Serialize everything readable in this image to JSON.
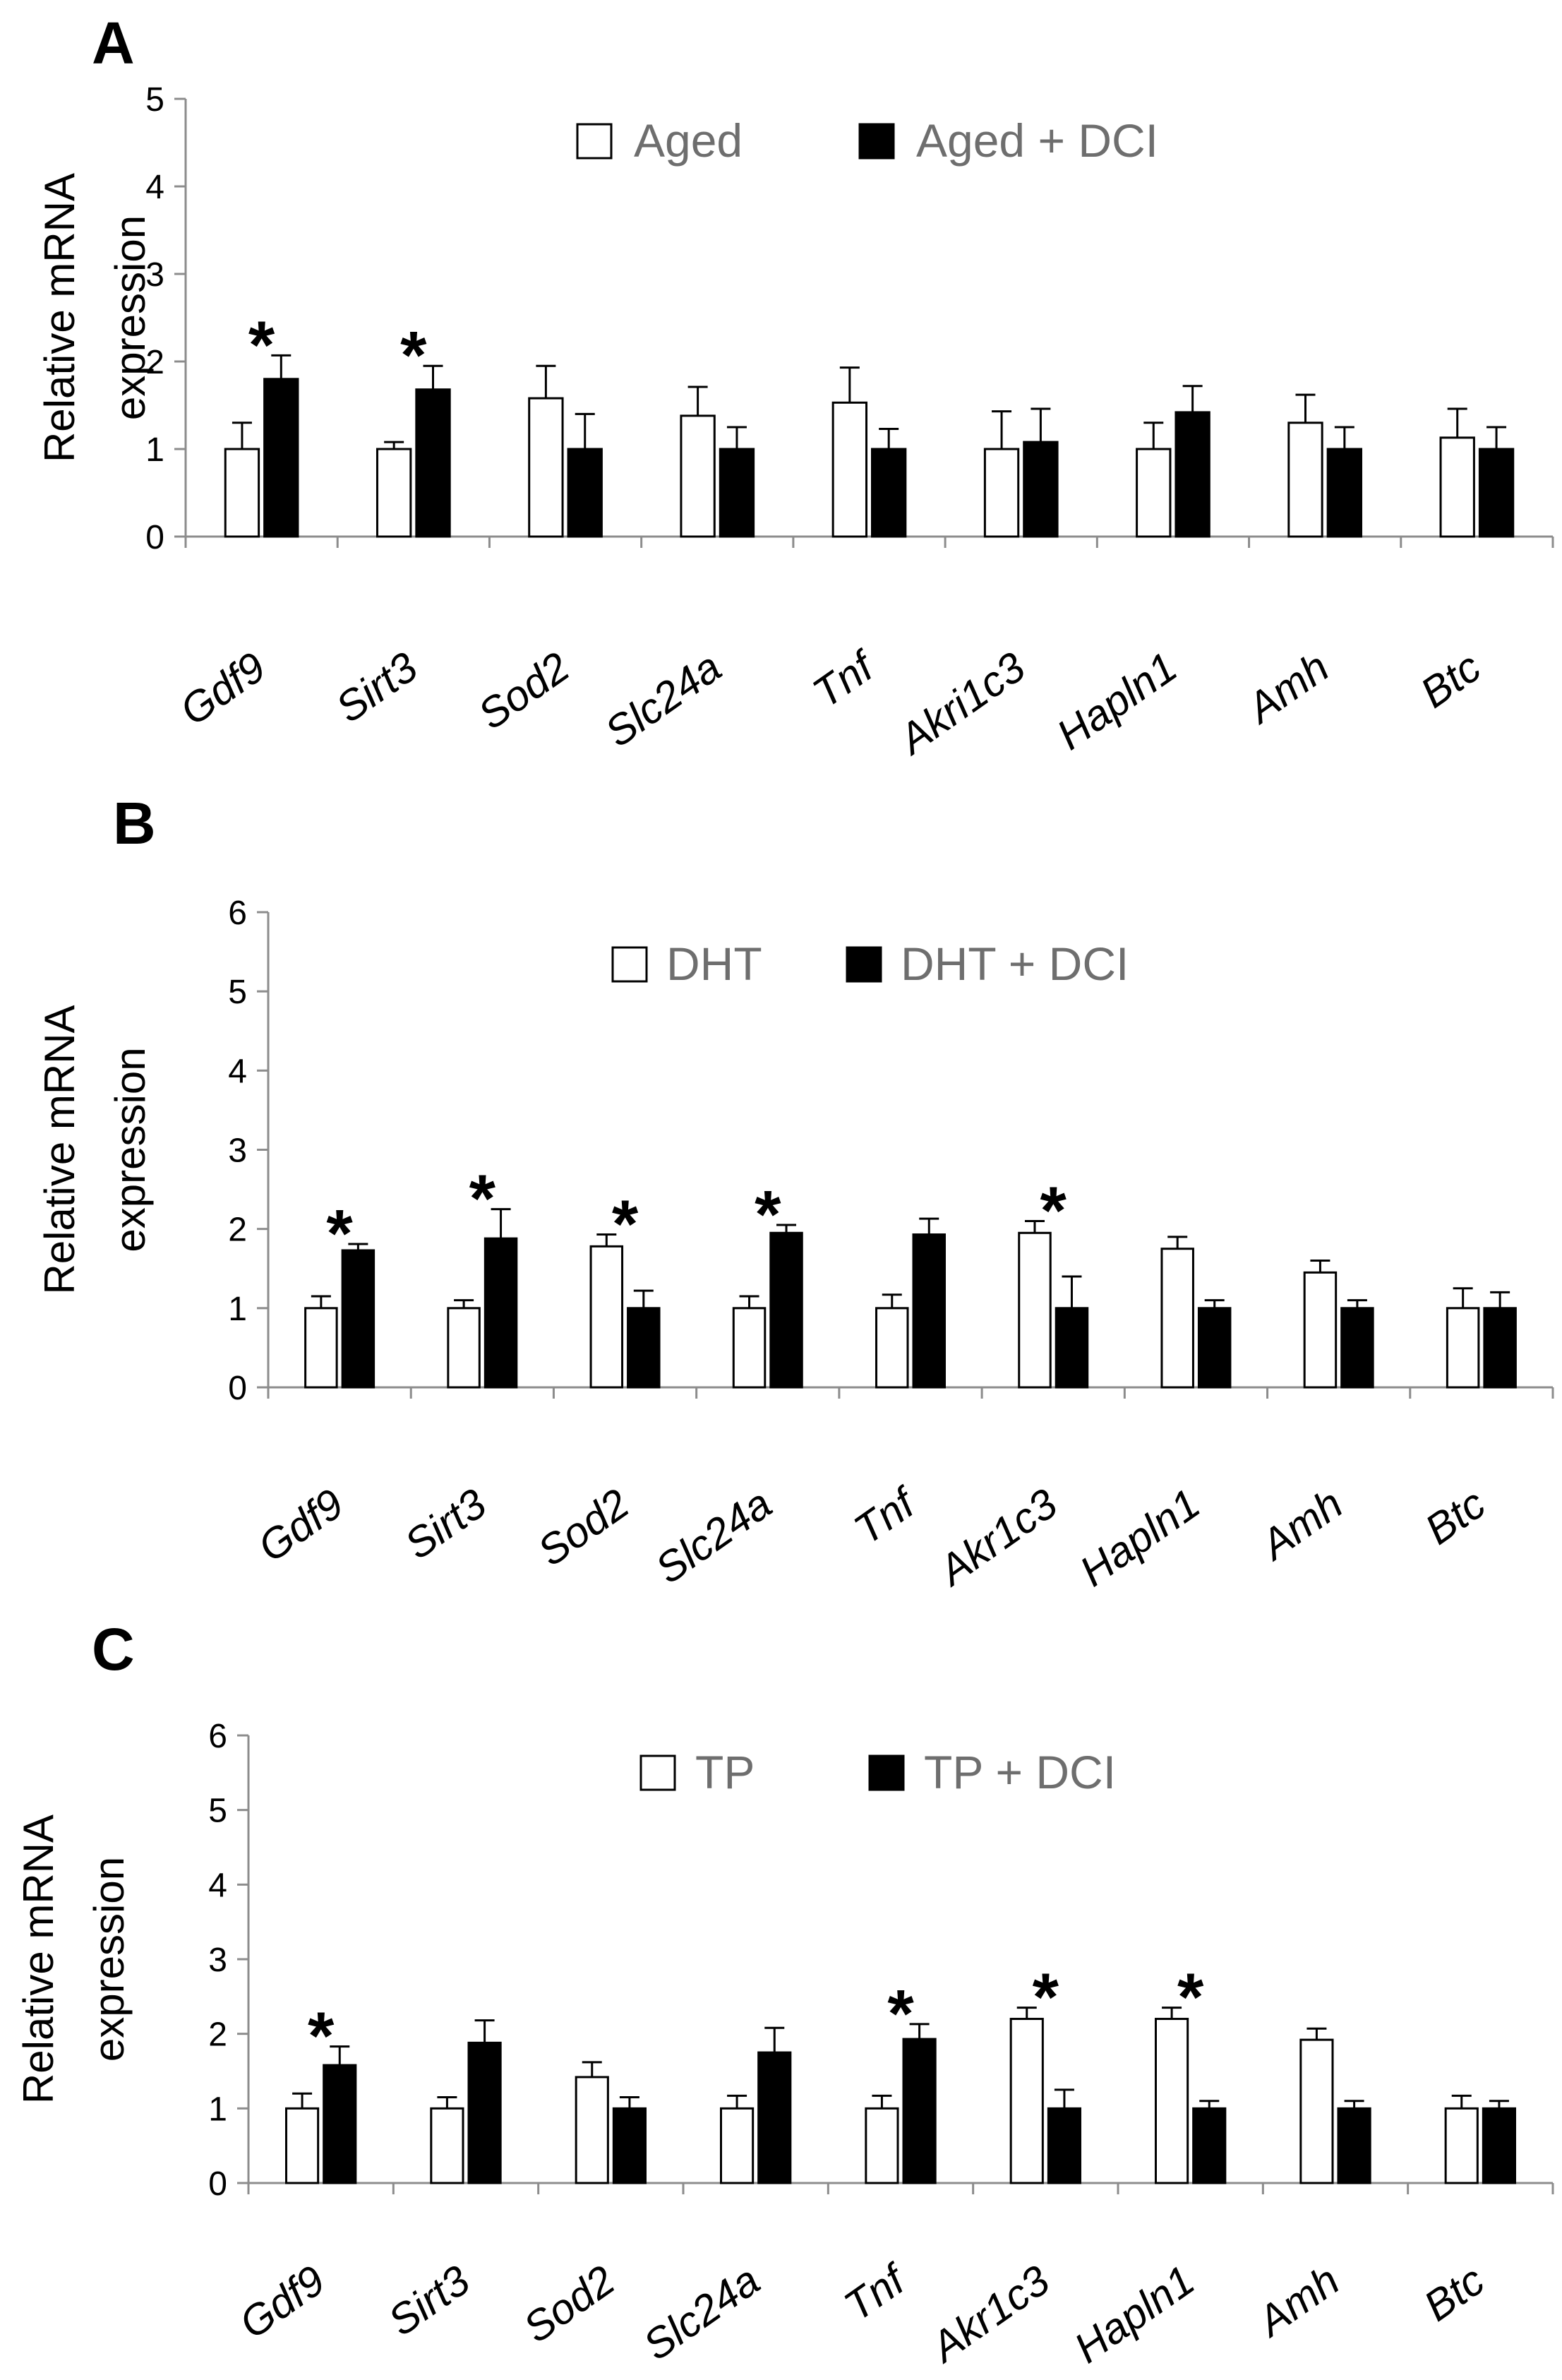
{
  "chart_data": [
    {
      "type": "bar",
      "panel": "A",
      "ylabel": [
        "Relative mRNA",
        "expression"
      ],
      "ylim": [
        0,
        5
      ],
      "yticks": [
        0,
        1,
        2,
        3,
        4,
        5
      ],
      "categories": [
        "Gdf9",
        "Sirt3",
        "Sod2",
        "Slc24a",
        "Tnf",
        "Akri1c3",
        "Hapln1",
        "Amh",
        "Btc"
      ],
      "series": [
        {
          "name": "Aged",
          "fill": "#ffffff",
          "values": [
            1.0,
            1.0,
            1.58,
            1.38,
            1.53,
            1.0,
            1.0,
            1.3,
            1.13
          ],
          "errors": [
            0.3,
            0.08,
            0.37,
            0.33,
            0.4,
            0.43,
            0.3,
            0.32,
            0.33
          ]
        },
        {
          "name": "Aged + DCI",
          "fill": "#000000",
          "values": [
            1.8,
            1.68,
            1.0,
            1.0,
            1.0,
            1.08,
            1.42,
            1.0,
            1.0
          ],
          "errors": [
            0.27,
            0.27,
            0.4,
            0.25,
            0.23,
            0.38,
            0.3,
            0.25,
            0.25
          ]
        }
      ],
      "significance": [
        "*",
        "*",
        "",
        "",
        "",
        "",
        "",
        "",
        ""
      ]
    },
    {
      "type": "bar",
      "panel": "B",
      "ylabel": [
        "Relative  mRNA",
        "expression"
      ],
      "ylim": [
        0,
        6
      ],
      "yticks": [
        0,
        1,
        2,
        3,
        4,
        5,
        6
      ],
      "categories": [
        "Gdf9",
        "Sirt3",
        "Sod2",
        "Slc24a",
        "Tnf",
        "Akr1c3",
        "Hapln1",
        "Amh",
        "Btc"
      ],
      "series": [
        {
          "name": "DHT",
          "fill": "#ffffff",
          "values": [
            1.0,
            1.0,
            1.78,
            1.0,
            1.0,
            1.95,
            1.75,
            1.45,
            1.0
          ],
          "errors": [
            0.15,
            0.1,
            0.15,
            0.15,
            0.17,
            0.15,
            0.15,
            0.15,
            0.25
          ]
        },
        {
          "name": "DHT + DCI",
          "fill": "#000000",
          "values": [
            1.73,
            1.88,
            1.0,
            1.95,
            1.93,
            1.0,
            1.0,
            1.0,
            1.0
          ],
          "errors": [
            0.08,
            0.37,
            0.22,
            0.1,
            0.2,
            0.4,
            0.1,
            0.1,
            0.2
          ]
        }
      ],
      "significance": [
        "*",
        "*",
        "*",
        "*",
        "",
        "*",
        "",
        "",
        ""
      ]
    },
    {
      "type": "bar",
      "panel": "C",
      "ylabel": [
        "Relative  mRNA",
        "expression"
      ],
      "ylim": [
        0,
        6
      ],
      "yticks": [
        0,
        1,
        2,
        3,
        4,
        5,
        6
      ],
      "categories": [
        "Gdf9",
        "Sirt3",
        "Sod2",
        "Slc24a",
        "Tnf",
        "Akr1c3",
        "Hapln1",
        "Amh",
        "Btc"
      ],
      "series": [
        {
          "name": "TP",
          "fill": "#ffffff",
          "values": [
            1.0,
            1.0,
            1.42,
            1.0,
            1.0,
            2.2,
            2.2,
            1.92,
            1.0
          ],
          "errors": [
            0.2,
            0.15,
            0.2,
            0.17,
            0.17,
            0.15,
            0.15,
            0.15,
            0.17
          ]
        },
        {
          "name": "TP + DCI",
          "fill": "#000000",
          "values": [
            1.58,
            1.88,
            1.0,
            1.75,
            1.93,
            1.0,
            1.0,
            1.0,
            1.0
          ],
          "errors": [
            0.25,
            0.3,
            0.15,
            0.33,
            0.2,
            0.25,
            0.1,
            0.1,
            0.1
          ]
        }
      ],
      "significance": [
        "*",
        "",
        "",
        "",
        "*",
        "*",
        "*",
        "",
        ""
      ]
    }
  ]
}
